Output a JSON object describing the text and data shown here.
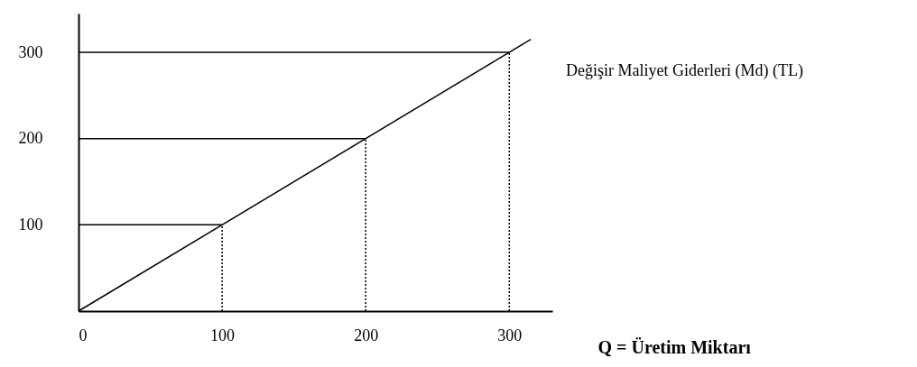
{
  "chart_data": {
    "type": "line",
    "xlabel": "Q = Üretim Miktarı",
    "xlim": [
      0,
      330
    ],
    "ylim": [
      0,
      345
    ],
    "xticks": [
      0,
      100,
      200,
      300
    ],
    "yticks": [
      100,
      200,
      300
    ],
    "grid": false,
    "marker": "none",
    "series": [
      {
        "name": "Değişir Maliyet Giderleri (Md) (TL)",
        "color": "#000000",
        "x": [
          0,
          315
        ],
        "values": [
          0,
          315
        ]
      },
      {
        "color": "#000000",
        "x": [
          0,
          300
        ],
        "values": [
          300,
          300
        ],
        "line_style": "solid"
      },
      {
        "color": "#000000",
        "x": [
          0,
          200
        ],
        "values": [
          200,
          200
        ],
        "line_style": "solid"
      },
      {
        "color": "#000000",
        "x": [
          0,
          100
        ],
        "values": [
          100,
          100
        ],
        "line_style": "solid"
      },
      {
        "color": "#000000",
        "x": [
          300,
          300
        ],
        "values": [
          0,
          300
        ],
        "line_style": "dotted"
      },
      {
        "color": "#000000",
        "x": [
          200,
          200
        ],
        "values": [
          0,
          200
        ],
        "line_style": "dotted"
      },
      {
        "color": "#000000",
        "x": [
          100,
          100
        ],
        "values": [
          0,
          100
        ],
        "line_style": "dotted"
      }
    ]
  }
}
